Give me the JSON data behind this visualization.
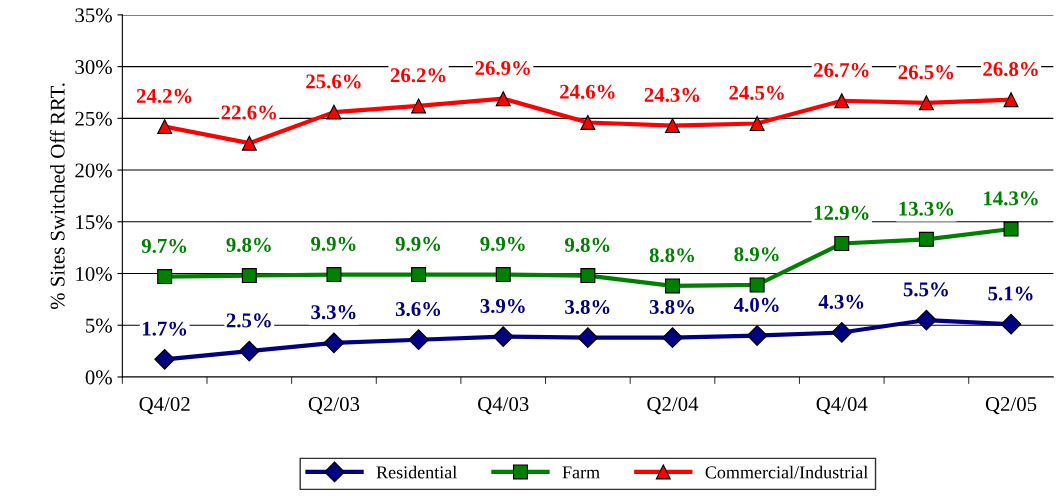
{
  "chart_data": {
    "type": "line",
    "ylabel": "% Sites Switched Off RRT.",
    "categories": [
      "Q4/02",
      null,
      "Q2/03",
      null,
      "Q4/03",
      null,
      "Q2/04",
      null,
      "Q4/04",
      null,
      "Q2/05"
    ],
    "series": [
      {
        "name": "Residential",
        "color": "#000080",
        "marker": "diamond",
        "values": [
          1.7,
          2.5,
          3.3,
          3.6,
          3.9,
          3.8,
          3.8,
          4.0,
          4.3,
          5.5,
          5.1
        ],
        "value_labels": [
          "1.7%",
          "2.5%",
          "3.3%",
          "3.6%",
          "3.9%",
          "3.8%",
          "3.8%",
          "4.0%",
          "4.3%",
          "5.5%",
          "5.1%"
        ]
      },
      {
        "name": "Farm",
        "color": "#008000",
        "marker": "square",
        "values": [
          9.7,
          9.8,
          9.9,
          9.9,
          9.9,
          9.8,
          8.8,
          8.9,
          12.9,
          13.3,
          14.3
        ],
        "value_labels": [
          "9.7%",
          "9.8%",
          "9.9%",
          "9.9%",
          "9.9%",
          "9.8%",
          "8.8%",
          "8.9%",
          "12.9%",
          "13.3%",
          "14.3%"
        ]
      },
      {
        "name": "Commercial/Industrial",
        "color": "#ff0000",
        "marker": "triangle",
        "values": [
          24.2,
          22.6,
          25.6,
          26.2,
          26.9,
          24.6,
          24.3,
          24.5,
          26.7,
          26.5,
          26.8
        ],
        "value_labels": [
          "24.2%",
          "22.6%",
          "25.6%",
          "26.2%",
          "26.9%",
          "24.6%",
          "24.3%",
          "24.5%",
          "26.7%",
          "26.5%",
          "26.8%"
        ]
      }
    ],
    "ylim": [
      0,
      35
    ],
    "yticks": [
      {
        "value": 0,
        "label": "0%"
      },
      {
        "value": 5,
        "label": "5%"
      },
      {
        "value": 10,
        "label": "10%"
      },
      {
        "value": 15,
        "label": "15%"
      },
      {
        "value": 20,
        "label": "20%"
      },
      {
        "value": 25,
        "label": "25%"
      },
      {
        "value": 30,
        "label": "30%"
      },
      {
        "value": 35,
        "label": "35%"
      }
    ],
    "grid": "y",
    "legend": "bottom",
    "line_style": "solid"
  }
}
